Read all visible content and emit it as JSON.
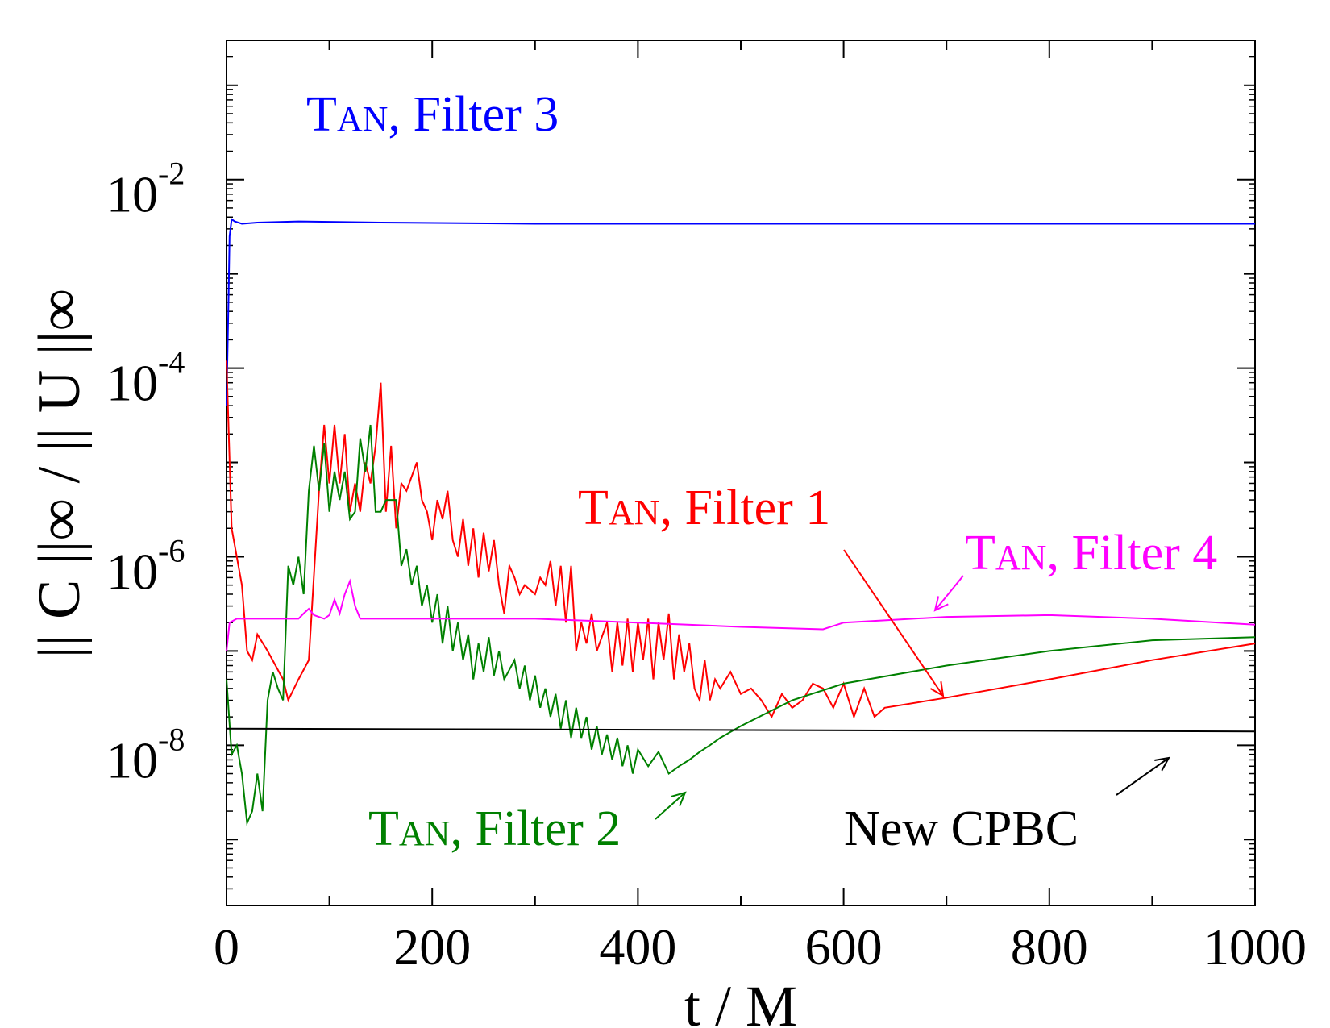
{
  "chart_data": {
    "type": "line",
    "xlabel": "t / M",
    "ylabel": "|| C ||∞ / || U ||∞",
    "y_scale": "log",
    "xlim": [
      0,
      1000
    ],
    "ylim": [
      2e-10,
      0.3
    ],
    "xticks": [
      "0",
      "200",
      "400",
      "600",
      "800",
      "1000"
    ],
    "yticks": [
      {
        "base": "10",
        "exp": "-2",
        "value": 0.01
      },
      {
        "base": "10",
        "exp": "-4",
        "value": 0.0001
      },
      {
        "base": "10",
        "exp": "-6",
        "value": 1e-06
      },
      {
        "base": "10",
        "exp": "-8",
        "value": 1e-08
      }
    ],
    "grid": false,
    "series": [
      {
        "name": "TAN, Filter 3",
        "label_parts": [
          "T",
          "AN",
          ", Filter 3"
        ],
        "color": "#0000ff",
        "points": [
          [
            0,
            4e-05
          ],
          [
            2,
            0.0006
          ],
          [
            3,
            0.0025
          ],
          [
            5,
            0.0038
          ],
          [
            8,
            0.0036
          ],
          [
            15,
            0.0034
          ],
          [
            30,
            0.0035
          ],
          [
            70,
            0.0036
          ],
          [
            150,
            0.0035
          ],
          [
            300,
            0.0034
          ],
          [
            600,
            0.0034
          ],
          [
            1000,
            0.0034
          ]
        ]
      },
      {
        "name": "TAN, Filter 1",
        "label_parts": [
          "T",
          "AN",
          ", Filter 1"
        ],
        "color": "#ff0000",
        "points": [
          [
            0,
            0.00012
          ],
          [
            5,
            2e-06
          ],
          [
            15,
            5e-07
          ],
          [
            20,
            1e-07
          ],
          [
            25,
            8e-08
          ],
          [
            30,
            1.5e-07
          ],
          [
            40,
            1e-07
          ],
          [
            55,
            5e-08
          ],
          [
            60,
            3e-08
          ],
          [
            70,
            5e-08
          ],
          [
            80,
            8e-08
          ],
          [
            90,
            5e-06
          ],
          [
            95,
            2.5e-05
          ],
          [
            100,
            6e-06
          ],
          [
            105,
            2.5e-05
          ],
          [
            110,
            6e-06
          ],
          [
            115,
            2e-05
          ],
          [
            120,
            3e-06
          ],
          [
            125,
            6e-06
          ],
          [
            130,
            3e-06
          ],
          [
            135,
            1e-05
          ],
          [
            140,
            6e-06
          ],
          [
            145,
            1.5e-05
          ],
          [
            150,
            7e-05
          ],
          [
            155,
            3e-06
          ],
          [
            160,
            1.5e-05
          ],
          [
            165,
            2e-06
          ],
          [
            170,
            6e-06
          ],
          [
            175,
            5e-06
          ],
          [
            185,
            1e-05
          ],
          [
            190,
            4e-06
          ],
          [
            195,
            3e-06
          ],
          [
            200,
            1.5e-06
          ],
          [
            205,
            4e-06
          ],
          [
            210,
            2.5e-06
          ],
          [
            215,
            5e-06
          ],
          [
            220,
            1.5e-06
          ],
          [
            225,
            1e-06
          ],
          [
            230,
            2.5e-06
          ],
          [
            235,
            8e-07
          ],
          [
            240,
            2e-06
          ],
          [
            245,
            6e-07
          ],
          [
            250,
            1.8e-06
          ],
          [
            255,
            7e-07
          ],
          [
            260,
            1.5e-06
          ],
          [
            265,
            5e-07
          ],
          [
            270,
            2.5e-07
          ],
          [
            275,
            8e-07
          ],
          [
            280,
            6e-07
          ],
          [
            285,
            4e-07
          ],
          [
            290,
            5e-07
          ],
          [
            300,
            4e-07
          ],
          [
            305,
            6e-07
          ],
          [
            310,
            5e-07
          ],
          [
            315,
            9e-07
          ],
          [
            320,
            3e-07
          ],
          [
            325,
            8e-07
          ],
          [
            330,
            2e-07
          ],
          [
            335,
            8e-07
          ],
          [
            340,
            1e-07
          ],
          [
            345,
            2e-07
          ],
          [
            350,
            1.2e-07
          ],
          [
            355,
            2.5e-07
          ],
          [
            360,
            1e-07
          ],
          [
            370,
            2e-07
          ],
          [
            375,
            6e-08
          ],
          [
            380,
            2e-07
          ],
          [
            385,
            7e-08
          ],
          [
            390,
            2.2e-07
          ],
          [
            395,
            6e-08
          ],
          [
            400,
            2e-07
          ],
          [
            405,
            8e-08
          ],
          [
            410,
            2.2e-07
          ],
          [
            415,
            5e-08
          ],
          [
            420,
            2e-07
          ],
          [
            425,
            8e-08
          ],
          [
            430,
            2.5e-07
          ],
          [
            435,
            5e-08
          ],
          [
            440,
            1.5e-07
          ],
          [
            445,
            6e-08
          ],
          [
            450,
            1.2e-07
          ],
          [
            455,
            4e-08
          ],
          [
            460,
            3e-08
          ],
          [
            465,
            8e-08
          ],
          [
            470,
            3e-08
          ],
          [
            475,
            5e-08
          ],
          [
            480,
            4e-08
          ],
          [
            490,
            6e-08
          ],
          [
            500,
            3.5e-08
          ],
          [
            510,
            4e-08
          ],
          [
            520,
            3e-08
          ],
          [
            530,
            2e-08
          ],
          [
            540,
            3.5e-08
          ],
          [
            550,
            2.5e-08
          ],
          [
            560,
            3e-08
          ],
          [
            570,
            4.5e-08
          ],
          [
            580,
            4e-08
          ],
          [
            590,
            2.5e-08
          ],
          [
            600,
            4.5e-08
          ],
          [
            610,
            2e-08
          ],
          [
            620,
            4e-08
          ],
          [
            630,
            2e-08
          ],
          [
            640,
            2.5e-08
          ],
          [
            700,
            3.2e-08
          ],
          [
            800,
            5e-08
          ],
          [
            900,
            8e-08
          ],
          [
            1000,
            1.2e-07
          ]
        ]
      },
      {
        "name": "TAN, Filter 2",
        "label_parts": [
          "T",
          "AN",
          ", Filter 2"
        ],
        "color": "#008000",
        "points": [
          [
            0,
            5e-08
          ],
          [
            5,
            8e-09
          ],
          [
            10,
            1e-08
          ],
          [
            15,
            5e-09
          ],
          [
            20,
            1.5e-09
          ],
          [
            25,
            2e-09
          ],
          [
            30,
            5e-09
          ],
          [
            35,
            2e-09
          ],
          [
            40,
            3e-08
          ],
          [
            45,
            6e-08
          ],
          [
            50,
            4e-08
          ],
          [
            55,
            3e-08
          ],
          [
            60,
            8e-07
          ],
          [
            65,
            5e-07
          ],
          [
            70,
            1e-06
          ],
          [
            75,
            4e-07
          ],
          [
            80,
            5e-06
          ],
          [
            85,
            1.5e-05
          ],
          [
            90,
            5e-06
          ],
          [
            95,
            1.6e-05
          ],
          [
            100,
            3e-06
          ],
          [
            105,
            8e-06
          ],
          [
            110,
            4e-06
          ],
          [
            115,
            8e-06
          ],
          [
            120,
            2.5e-06
          ],
          [
            125,
            3e-06
          ],
          [
            130,
            1.8e-05
          ],
          [
            135,
            8e-06
          ],
          [
            140,
            2.5e-05
          ],
          [
            145,
            3e-06
          ],
          [
            150,
            3e-06
          ],
          [
            155,
            4e-06
          ],
          [
            160,
            4e-06
          ],
          [
            165,
            4e-06
          ],
          [
            170,
            8e-07
          ],
          [
            175,
            1.2e-06
          ],
          [
            180,
            5e-07
          ],
          [
            185,
            8e-07
          ],
          [
            190,
            3e-07
          ],
          [
            195,
            5e-07
          ],
          [
            200,
            2e-07
          ],
          [
            205,
            4e-07
          ],
          [
            210,
            1.2e-07
          ],
          [
            215,
            3e-07
          ],
          [
            220,
            1e-07
          ],
          [
            225,
            2e-07
          ],
          [
            230,
            8e-08
          ],
          [
            235,
            1.5e-07
          ],
          [
            240,
            5e-08
          ],
          [
            245,
            1.2e-07
          ],
          [
            250,
            6e-08
          ],
          [
            255,
            1.4e-07
          ],
          [
            260,
            5.5e-08
          ],
          [
            265,
            1e-07
          ],
          [
            270,
            5e-08
          ],
          [
            280,
            8e-08
          ],
          [
            285,
            4e-08
          ],
          [
            290,
            7e-08
          ],
          [
            295,
            3e-08
          ],
          [
            300,
            5.5e-08
          ],
          [
            305,
            2.5e-08
          ],
          [
            310,
            4e-08
          ],
          [
            315,
            2e-08
          ],
          [
            320,
            3.5e-08
          ],
          [
            325,
            1.5e-08
          ],
          [
            330,
            3e-08
          ],
          [
            335,
            1.2e-08
          ],
          [
            340,
            2.5e-08
          ],
          [
            345,
            1.2e-08
          ],
          [
            350,
            2e-08
          ],
          [
            355,
            9e-09
          ],
          [
            360,
            1.6e-08
          ],
          [
            365,
            8e-09
          ],
          [
            370,
            1.3e-08
          ],
          [
            375,
            7e-09
          ],
          [
            380,
            1.2e-08
          ],
          [
            385,
            6e-09
          ],
          [
            390,
            1e-08
          ],
          [
            395,
            5e-09
          ],
          [
            400,
            9e-09
          ],
          [
            410,
            6e-09
          ],
          [
            420,
            8.5e-09
          ],
          [
            430,
            5e-09
          ],
          [
            440,
            6e-09
          ],
          [
            450,
            7e-09
          ],
          [
            460,
            8.5e-09
          ],
          [
            470,
            1e-08
          ],
          [
            480,
            1.2e-08
          ],
          [
            500,
            1.6e-08
          ],
          [
            550,
            3e-08
          ],
          [
            600,
            4.5e-08
          ],
          [
            700,
            7e-08
          ],
          [
            800,
            1e-07
          ],
          [
            900,
            1.3e-07
          ],
          [
            1000,
            1.4e-07
          ]
        ]
      },
      {
        "name": "TAN, Filter 4",
        "label_parts": [
          "T",
          "AN",
          ", Filter 4"
        ],
        "color": "#ff00ff",
        "points": [
          [
            0,
            1e-07
          ],
          [
            3,
            2e-07
          ],
          [
            10,
            2.2e-07
          ],
          [
            70,
            2.2e-07
          ],
          [
            75,
            2.5e-07
          ],
          [
            80,
            2.8e-07
          ],
          [
            85,
            2.4e-07
          ],
          [
            95,
            2.2e-07
          ],
          [
            100,
            2.4e-07
          ],
          [
            105,
            3.5e-07
          ],
          [
            110,
            2.5e-07
          ],
          [
            115,
            4e-07
          ],
          [
            120,
            5.5e-07
          ],
          [
            125,
            3e-07
          ],
          [
            130,
            2.2e-07
          ],
          [
            200,
            2.2e-07
          ],
          [
            300,
            2.2e-07
          ],
          [
            400,
            2e-07
          ],
          [
            500,
            1.8e-07
          ],
          [
            580,
            1.7e-07
          ],
          [
            600,
            2e-07
          ],
          [
            700,
            2.3e-07
          ],
          [
            800,
            2.4e-07
          ],
          [
            900,
            2.2e-07
          ],
          [
            1000,
            1.9e-07
          ]
        ]
      },
      {
        "name": "New CPBC",
        "label_parts": [
          "New CPBC"
        ],
        "color": "#000000",
        "points": [
          [
            0,
            1.5e-08
          ],
          [
            1000,
            1.4e-08
          ]
        ]
      }
    ]
  }
}
